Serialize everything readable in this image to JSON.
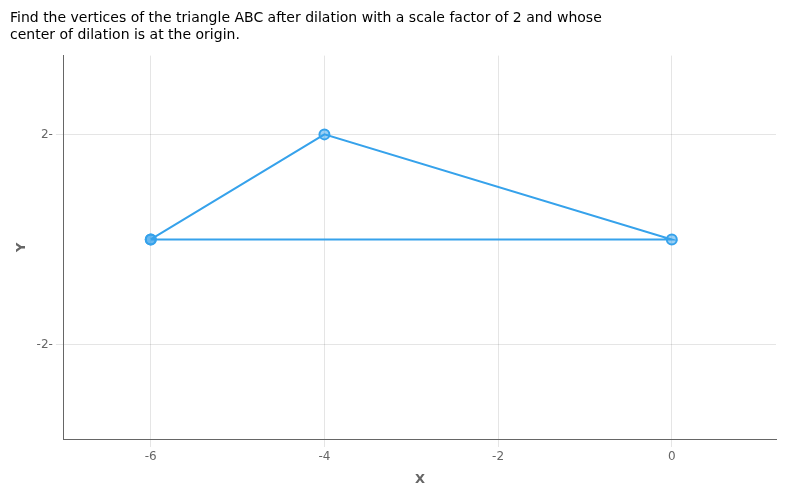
{
  "chart_data": {
    "type": "line",
    "title": [
      "Find the vertices of the triangle ABC after dilation with a scale factor of 2 and whose",
      "center of dilation is at the origin."
    ],
    "x": [
      -6,
      -4,
      0
    ],
    "values": [
      0,
      2,
      0
    ],
    "marker": "circle",
    "xlabel": "X",
    "ylabel": "Y",
    "xlim": [
      -7,
      1.2
    ],
    "ylim": [
      -3.8,
      3.5
    ],
    "xticks": [
      -6,
      -4,
      -2,
      0
    ],
    "yticks": [
      {
        "value": 2,
        "label": "2-"
      },
      {
        "value": -2,
        "label": "-2-"
      }
    ],
    "grid": true
  }
}
